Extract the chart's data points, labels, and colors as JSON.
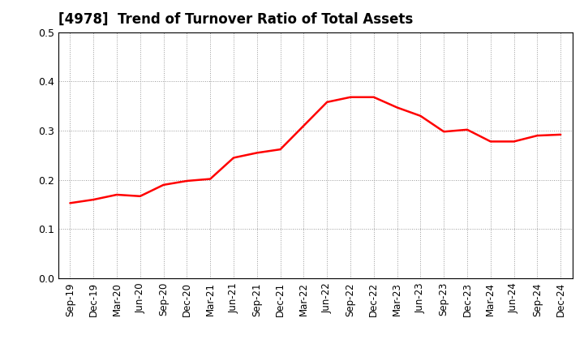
{
  "title": "[4978]  Trend of Turnover Ratio of Total Assets",
  "line_color": "#FF0000",
  "line_width": 1.8,
  "background_color": "#FFFFFF",
  "grid_color": "#999999",
  "ylim": [
    0.0,
    0.5
  ],
  "yticks": [
    0.0,
    0.1,
    0.2,
    0.3,
    0.4,
    0.5
  ],
  "values": [
    0.153,
    0.16,
    0.17,
    0.167,
    0.19,
    0.198,
    0.202,
    0.245,
    0.255,
    0.262,
    0.31,
    0.358,
    0.368,
    0.368,
    0.347,
    0.33,
    0.298,
    0.302,
    0.278,
    0.278,
    0.29,
    0.292
  ],
  "tick_labels": [
    "Sep-19",
    "Dec-19",
    "Mar-20",
    "Jun-20",
    "Sep-20",
    "Dec-20",
    "Mar-21",
    "Jun-21",
    "Sep-21",
    "Dec-21",
    "Mar-22",
    "Jun-22",
    "Sep-22",
    "Dec-22",
    "Mar-23",
    "Jun-23",
    "Sep-23",
    "Dec-23",
    "Mar-24",
    "Jun-24",
    "Sep-24",
    "Dec-24"
  ],
  "title_fontsize": 12,
  "tick_fontsize": 8.5,
  "ytick_fontsize": 9
}
